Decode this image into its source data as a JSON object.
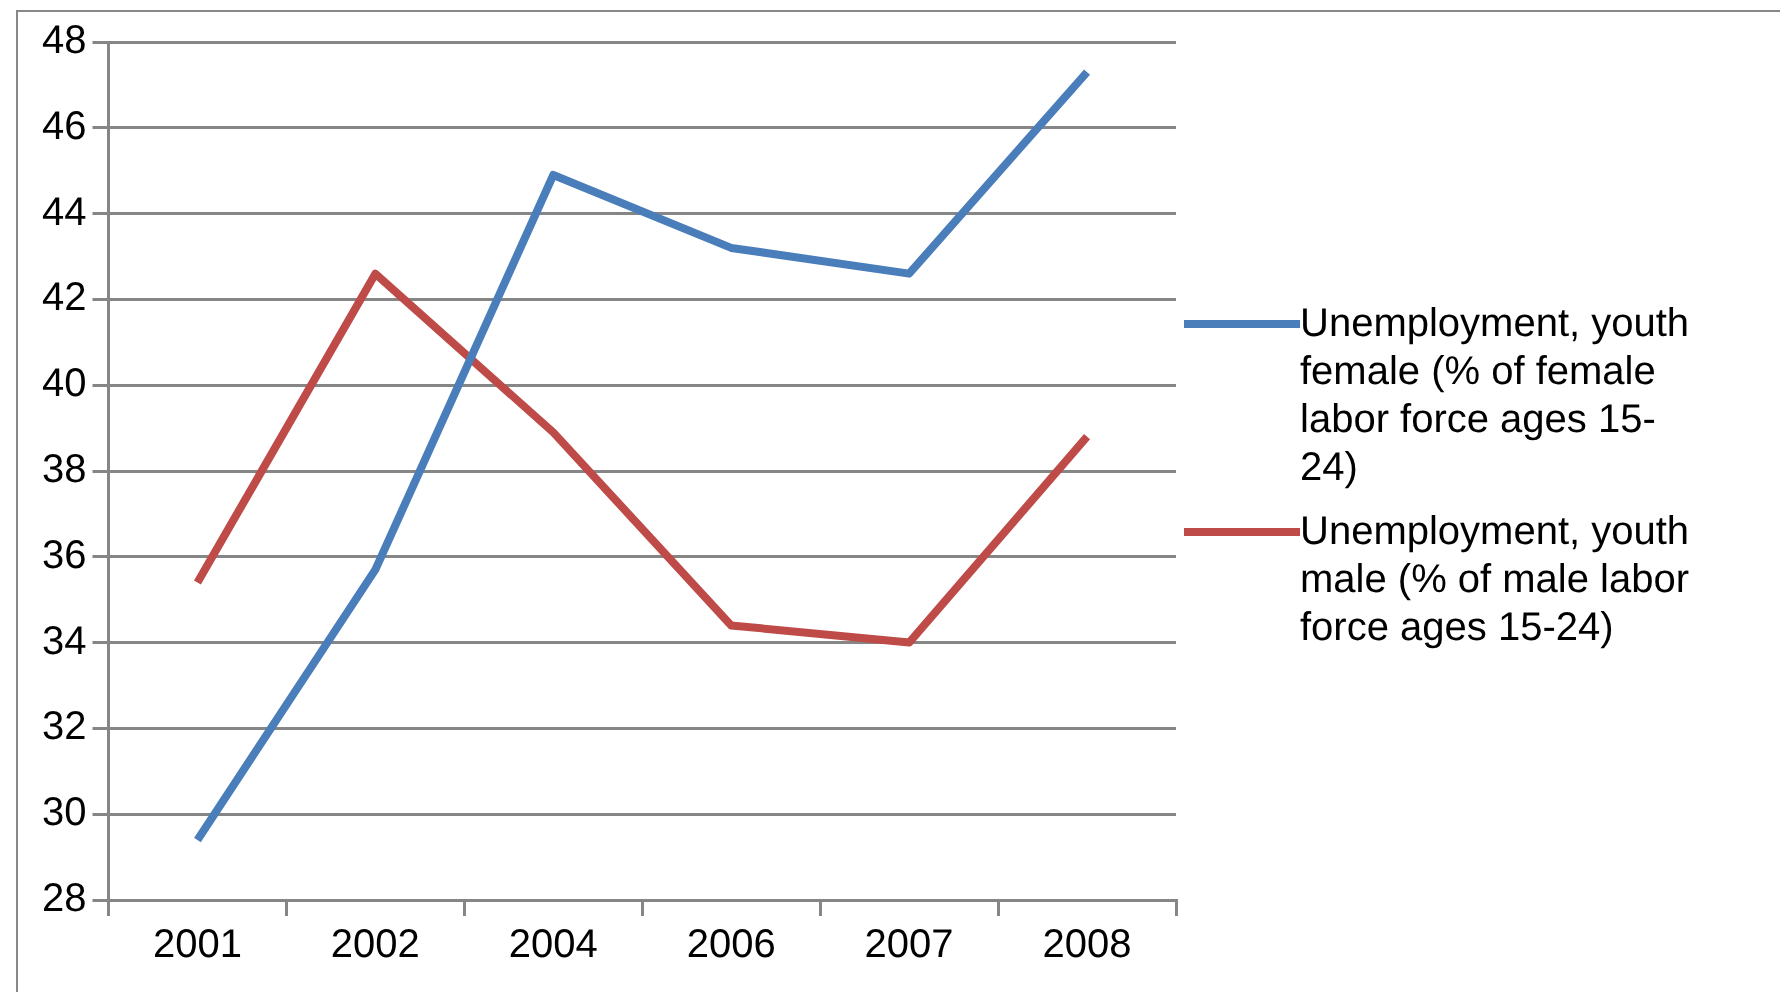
{
  "chart_data": {
    "type": "line",
    "categories": [
      "2001",
      "2002",
      "2004",
      "2006",
      "2007",
      "2008"
    ],
    "series": [
      {
        "name": "Unemployment, youth female (% of female labor force ages 15-24)",
        "color": "#4a7ebb",
        "values": [
          29.4,
          35.7,
          44.9,
          43.2,
          42.6,
          47.3
        ]
      },
      {
        "name": "Unemployment, youth male (% of male labor force ages 15-24)",
        "color": "#be4b48",
        "values": [
          35.4,
          42.6,
          38.9,
          34.4,
          34.0,
          38.8
        ]
      }
    ],
    "ylim": [
      28,
      48
    ],
    "yticks": [
      28,
      30,
      32,
      34,
      36,
      38,
      40,
      42,
      44,
      46,
      48
    ],
    "grid": "y",
    "legend": "right",
    "marker": "none",
    "line_style": "solid"
  }
}
